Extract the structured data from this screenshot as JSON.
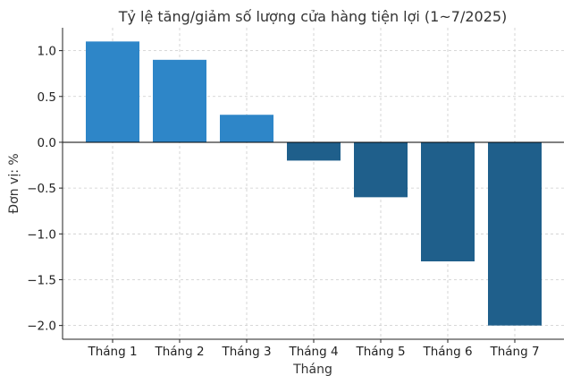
{
  "chart_data": {
    "type": "bar",
    "title": "Tỷ lệ tăng/giảm số lượng cửa hàng tiện lợi (1~7/2025)",
    "xlabel": "Tháng",
    "ylabel": "Đơn vị: %",
    "categories": [
      "Tháng 1",
      "Tháng 2",
      "Tháng 3",
      "Tháng 4",
      "Tháng 5",
      "Tháng 6",
      "Tháng 7"
    ],
    "values": [
      1.1,
      0.9,
      0.3,
      -0.2,
      -0.6,
      -1.3,
      -2.0
    ],
    "ylim": [
      -2.15,
      1.25
    ],
    "yticks": [
      1.0,
      0.5,
      0.0,
      -0.5,
      -1.0,
      -1.5,
      -2.0
    ],
    "ytick_labels": [
      "1.0",
      "0.5",
      "0.0",
      "−0.5",
      "−1.0",
      "−1.5",
      "−2.0"
    ],
    "grid": true,
    "colors": {
      "positive": "#2E86C8",
      "negative": "#1F5F8B",
      "zero_line": "#000000"
    }
  }
}
